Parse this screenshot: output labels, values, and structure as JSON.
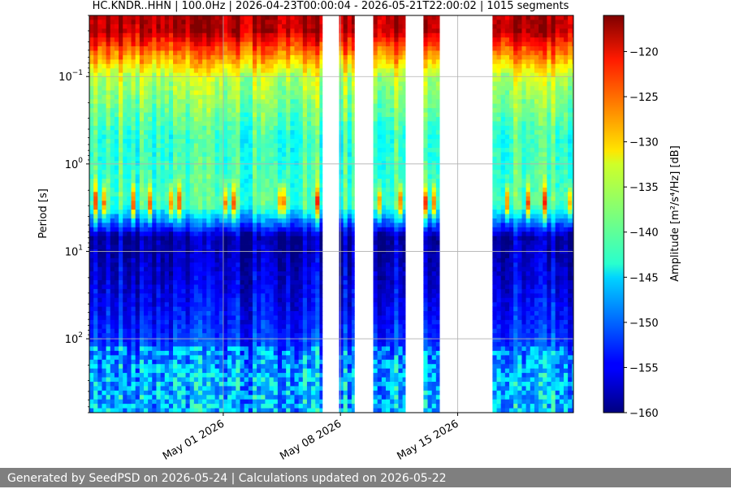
{
  "chart_data": {
    "type": "heatmap",
    "title": "HC.KNDR..HHN | 100.0Hz | 2026-04-23T00:00:04 - 2026-05-21T22:00:02 | 1015 segments",
    "xlabel": "",
    "ylabel": "Period [s]",
    "colorbar_label": "Amplitude [m²/s⁴/Hz] [dB]",
    "colormap": "jet",
    "x_range": [
      "2026-04-23T00:00:04",
      "2026-05-21T22:00:02"
    ],
    "x_ticks": [
      {
        "date": "2026-05-01",
        "label": "May 01 2026"
      },
      {
        "date": "2026-05-08",
        "label": "May 08 2026"
      },
      {
        "date": "2026-05-15",
        "label": "May 15 2026"
      }
    ],
    "y_scale": "log",
    "y_inverted": true,
    "y_range": [
      0.02,
      700
    ],
    "y_ticks": [
      {
        "value": 0.1,
        "base": "10",
        "exp": "−1"
      },
      {
        "value": 1,
        "base": "10",
        "exp": "0"
      },
      {
        "value": 10,
        "base": "10",
        "exp": "1"
      },
      {
        "value": 100,
        "base": "10",
        "exp": "2"
      }
    ],
    "color_range": [
      -160,
      -116
    ],
    "colorbar_ticks": [
      -120,
      -125,
      -130,
      -135,
      -140,
      -145,
      -150,
      -155,
      -160
    ],
    "data_periods": [
      {
        "start": "2026-04-23T00:00",
        "end": "2026-05-06T22:00"
      },
      {
        "start": "2026-05-07T22:00",
        "end": "2026-05-08T20:00"
      },
      {
        "start": "2026-05-09T23:00",
        "end": "2026-05-11T21:00"
      },
      {
        "start": "2026-05-12T23:00",
        "end": "2026-05-13T22:00"
      },
      {
        "start": "2026-05-17T02:00",
        "end": "2026-05-21T22:00"
      }
    ],
    "typical_levels_db": [
      {
        "period_s": 0.03,
        "db": -118
      },
      {
        "period_s": 0.1,
        "db": -135
      },
      {
        "period_s": 0.5,
        "db": -141
      },
      {
        "period_s": 3,
        "db": -140
      },
      {
        "period_s": 7,
        "db": -158
      },
      {
        "period_s": 30,
        "db": -155
      },
      {
        "period_s": 300,
        "db": -149
      }
    ],
    "grid": true
  },
  "footer": {
    "text": "Generated by SeedPSD on 2026-05-24 | Calculations updated on 2026-05-22"
  }
}
